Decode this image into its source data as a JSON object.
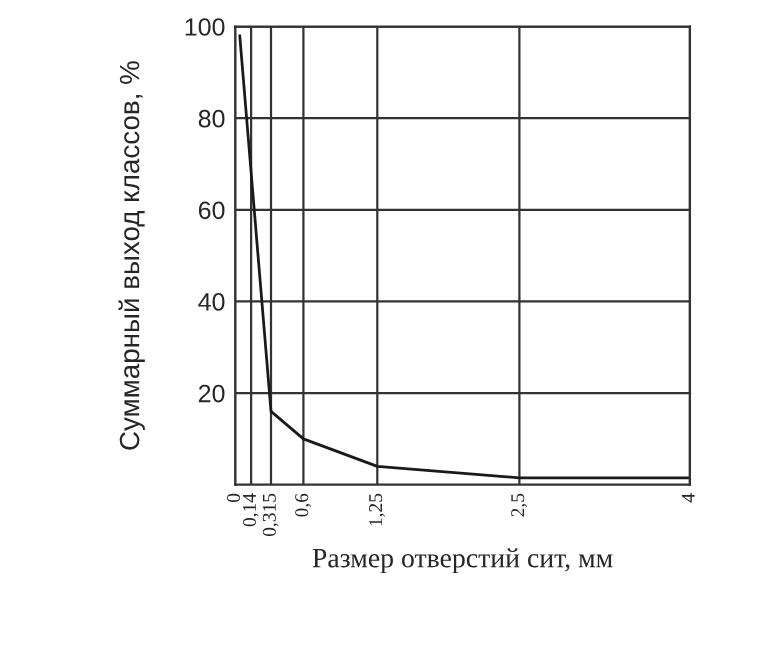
{
  "chart_data": {
    "type": "line",
    "xlabel": "Размер отверстий сит, мм",
    "ylabel": "Суммарный выход классов, %",
    "x": [
      0.04,
      0.315,
      0.6,
      1.25,
      2.5,
      4
    ],
    "series": [
      {
        "color": "#1a1a1a",
        "values": [
          98,
          16,
          10,
          4,
          1.5,
          1.5
        ]
      }
    ],
    "xlim": [
      0,
      4
    ],
    "ylim": [
      0,
      100
    ],
    "xticks": [
      0,
      {
        "value": 0.14,
        "label": "0,14"
      },
      {
        "value": 0.315,
        "label": "0,315"
      },
      {
        "value": 0.6,
        "label": "0,6"
      },
      {
        "value": 1.25,
        "label": "1,25"
      },
      {
        "value": 2.5,
        "label": "2,5"
      },
      4
    ],
    "yticks": [
      20,
      40,
      60,
      80,
      100
    ],
    "grid": true,
    "marker": "none",
    "line_style": "solid"
  }
}
